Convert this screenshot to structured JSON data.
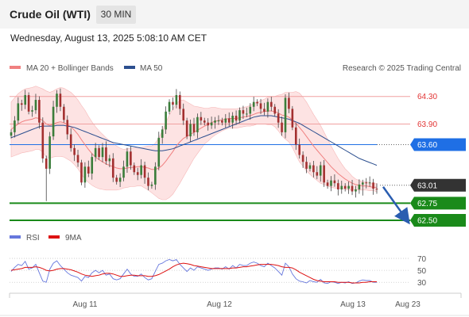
{
  "header": {
    "title": "Crude Oil (WTI)",
    "timeframe": "30 MIN"
  },
  "datetime": "Wednesday, August 13, 2025 5:08:10 AM CET",
  "copyright": "Research © 2025 Trading Central",
  "colors": {
    "bollinger": "#f08080",
    "bollinger_fill": "#fde3e3",
    "ma50": "#2c4f8f",
    "resistance_line": "#f0a0a0",
    "pivot": "#1f6fe5",
    "support": "#1a8a1a",
    "current": "#333333",
    "arrow": "#2a5db0",
    "rsi": "#6677dd",
    "rsi_ma": "#dd1111"
  },
  "chart_data": [
    {
      "type": "candlestick",
      "legend": [
        {
          "name": "MA 20 + Bollinger Bands",
          "color": "#f08080"
        },
        {
          "name": "MA 50",
          "color": "#2c4f8f"
        }
      ],
      "ylim": [
        62.42,
        64.55
      ],
      "x_labels": [
        "Aug 11",
        "Aug 12",
        "Aug 13",
        "Aug 23"
      ],
      "levels": [
        {
          "value": 64.3,
          "label": "64.30",
          "kind": "resistance"
        },
        {
          "value": 63.9,
          "label": "63.90",
          "kind": "resistance"
        },
        {
          "value": 63.6,
          "label": "63.60",
          "kind": "pivot"
        },
        {
          "value": 63.01,
          "label": "63.01",
          "kind": "current"
        },
        {
          "value": 62.75,
          "label": "62.75",
          "kind": "support"
        },
        {
          "value": 62.5,
          "label": "62.50",
          "kind": "support"
        }
      ],
      "close": [
        63.78,
        63.95,
        64.2,
        64.18,
        64.32,
        64.08,
        64.1,
        64.25,
        63.92,
        63.4,
        63.25,
        63.72,
        64.15,
        64.34,
        64.15,
        63.96,
        63.75,
        63.55,
        63.45,
        63.34,
        63.05,
        63.28,
        63.18,
        63.42,
        63.55,
        63.42,
        63.56,
        63.36,
        63.4,
        63.12,
        63.06,
        63.12,
        63.28,
        63.5,
        63.3,
        63.2,
        63.16,
        63.3,
        63.12,
        63.0,
        63.02,
        63.28,
        63.7,
        63.82,
        64.08,
        64.22,
        64.18,
        64.32,
        64.12,
        63.95,
        63.72,
        63.9,
        63.78,
        64.0,
        63.95,
        63.92,
        63.88,
        63.92,
        63.95,
        63.95,
        63.92,
        63.98,
        63.92,
        64.02,
        63.95,
        64.1,
        64.05,
        64.05,
        64.15,
        64.22,
        64.2,
        64.12,
        64.08,
        64.22,
        64.15,
        64.05,
        63.92,
        63.78,
        64.28,
        64.12,
        63.85,
        63.6,
        63.45,
        63.35,
        63.25,
        63.3,
        63.2,
        63.15,
        63.3,
        63.05,
        63.0,
        63.08,
        63.04,
        62.95,
        63.0,
        62.96,
        63.0,
        62.92,
        62.95,
        63.02,
        63.05,
        63.04,
        63.05,
        62.96,
        62.95
      ],
      "ma20": [
        63.82,
        63.86,
        63.9,
        63.93,
        63.95,
        63.96,
        63.97,
        63.99,
        63.98,
        63.95,
        63.9,
        63.88,
        63.9,
        63.92,
        63.93,
        63.92,
        63.89,
        63.86,
        63.81,
        63.75,
        63.67,
        63.6,
        63.53,
        63.47,
        63.42,
        63.38,
        63.35,
        63.32,
        63.3,
        63.28,
        63.26,
        63.25,
        63.25,
        63.26,
        63.27,
        63.27,
        63.28,
        63.28,
        63.27,
        63.26,
        63.24,
        63.24,
        63.26,
        63.3,
        63.36,
        63.43,
        63.5,
        63.58,
        63.64,
        63.69,
        63.72,
        63.75,
        63.78,
        63.81,
        63.84,
        63.87,
        63.89,
        63.92,
        63.94,
        63.95,
        63.96,
        63.97,
        63.98,
        63.98,
        63.98,
        63.99,
        64.0,
        64.01,
        64.02,
        64.04,
        64.06,
        64.07,
        64.08,
        64.09,
        64.09,
        64.08,
        64.06,
        64.03,
        64.02,
        64.0,
        63.96,
        63.91,
        63.85,
        63.79,
        63.72,
        63.65,
        63.58,
        63.52,
        63.46,
        63.4,
        63.34,
        63.28,
        63.23,
        63.18,
        63.14,
        63.1,
        63.07,
        63.04,
        63.02,
        63.01,
        63.0,
        63.0,
        62.99,
        62.98,
        62.98
      ],
      "ma50": [
        63.7,
        63.72,
        63.74,
        63.76,
        63.78,
        63.8,
        63.82,
        63.84,
        63.86,
        63.87,
        63.87,
        63.87,
        63.87,
        63.88,
        63.88,
        63.88,
        63.87,
        63.86,
        63.85,
        63.83,
        63.81,
        63.79,
        63.77,
        63.75,
        63.73,
        63.71,
        63.69,
        63.67,
        63.65,
        63.63,
        63.62,
        63.61,
        63.6,
        63.59,
        63.58,
        63.57,
        63.56,
        63.55,
        63.54,
        63.53,
        63.52,
        63.51,
        63.51,
        63.51,
        63.52,
        63.53,
        63.54,
        63.56,
        63.58,
        63.6,
        63.62,
        63.64,
        63.66,
        63.68,
        63.7,
        63.72,
        63.74,
        63.76,
        63.78,
        63.8,
        63.82,
        63.84,
        63.86,
        63.88,
        63.9,
        63.92,
        63.94,
        63.96,
        63.98,
        64.0,
        64.01,
        64.02,
        64.02,
        64.02,
        64.02,
        64.01,
        64.0,
        63.99,
        63.98,
        63.97,
        63.95,
        63.93,
        63.91,
        63.88,
        63.85,
        63.82,
        63.79,
        63.76,
        63.73,
        63.7,
        63.67,
        63.64,
        63.61,
        63.58,
        63.55,
        63.52,
        63.49,
        63.46,
        63.43,
        63.4,
        63.38,
        63.36,
        63.34,
        63.32,
        63.3
      ],
      "band_width": [
        0.4,
        0.42,
        0.44,
        0.45,
        0.46,
        0.46,
        0.46,
        0.46,
        0.45,
        0.46,
        0.48,
        0.48,
        0.48,
        0.49,
        0.5,
        0.5,
        0.5,
        0.5,
        0.5,
        0.5,
        0.5,
        0.5,
        0.48,
        0.46,
        0.44,
        0.42,
        0.4,
        0.38,
        0.36,
        0.34,
        0.32,
        0.3,
        0.28,
        0.28,
        0.28,
        0.28,
        0.28,
        0.28,
        0.3,
        0.32,
        0.34,
        0.38,
        0.44,
        0.5,
        0.56,
        0.6,
        0.62,
        0.62,
        0.6,
        0.56,
        0.5,
        0.44,
        0.38,
        0.34,
        0.3,
        0.26,
        0.24,
        0.22,
        0.2,
        0.18,
        0.16,
        0.15,
        0.14,
        0.14,
        0.14,
        0.14,
        0.14,
        0.14,
        0.15,
        0.16,
        0.16,
        0.17,
        0.18,
        0.2,
        0.2,
        0.22,
        0.26,
        0.3,
        0.34,
        0.36,
        0.4,
        0.46,
        0.5,
        0.5,
        0.5,
        0.48,
        0.46,
        0.44,
        0.42,
        0.38,
        0.34,
        0.3,
        0.26,
        0.22,
        0.18,
        0.15,
        0.13,
        0.1,
        0.08,
        0.07,
        0.06,
        0.06,
        0.06,
        0.05,
        0.06
      ],
      "forecast_from": 63.01,
      "forecast_to": 62.5
    },
    {
      "type": "line",
      "legend": [
        {
          "name": "RSI",
          "color": "#6677dd"
        },
        {
          "name": "9MA",
          "color": "#dd1111"
        }
      ],
      "ylim": [
        25,
        78
      ],
      "y_ticks": [
        30,
        50,
        70
      ],
      "rsi": [
        48,
        55,
        60,
        58,
        65,
        52,
        54,
        60,
        46,
        32,
        30,
        52,
        62,
        66,
        58,
        52,
        46,
        42,
        40,
        38,
        32,
        40,
        38,
        46,
        50,
        46,
        50,
        42,
        44,
        36,
        34,
        36,
        44,
        52,
        44,
        40,
        40,
        44,
        38,
        34,
        36,
        48,
        60,
        62,
        66,
        68,
        66,
        68,
        60,
        54,
        48,
        54,
        50,
        56,
        54,
        52,
        50,
        52,
        54,
        54,
        52,
        56,
        52,
        58,
        54,
        60,
        58,
        58,
        62,
        64,
        62,
        58,
        56,
        62,
        58,
        54,
        48,
        42,
        62,
        56,
        44,
        36,
        32,
        31,
        29,
        33,
        31,
        30,
        35,
        29,
        28,
        31,
        30,
        28,
        30,
        29,
        31,
        28,
        29,
        32,
        34,
        33,
        33,
        30,
        30
      ],
      "rsi_ma": [
        50,
        51,
        52,
        53,
        55,
        55,
        55,
        56,
        55,
        53,
        50,
        49,
        50,
        52,
        53,
        53,
        52,
        51,
        49,
        47,
        44,
        42,
        41,
        40,
        41,
        42,
        44,
        45,
        45,
        44,
        42,
        40,
        40,
        41,
        42,
        42,
        41,
        41,
        41,
        40,
        40,
        41,
        43,
        46,
        49,
        52,
        56,
        59,
        61,
        62,
        61,
        60,
        58,
        57,
        56,
        55,
        54,
        53,
        53,
        53,
        53,
        53,
        53,
        54,
        54,
        55,
        56,
        56,
        57,
        58,
        59,
        60,
        60,
        60,
        60,
        59,
        58,
        56,
        55,
        55,
        54,
        51,
        47,
        44,
        41,
        38,
        35,
        33,
        32,
        31,
        31,
        31,
        31,
        30,
        30,
        30,
        30,
        29,
        29,
        29,
        30,
        30,
        31,
        31,
        31
      ]
    }
  ]
}
